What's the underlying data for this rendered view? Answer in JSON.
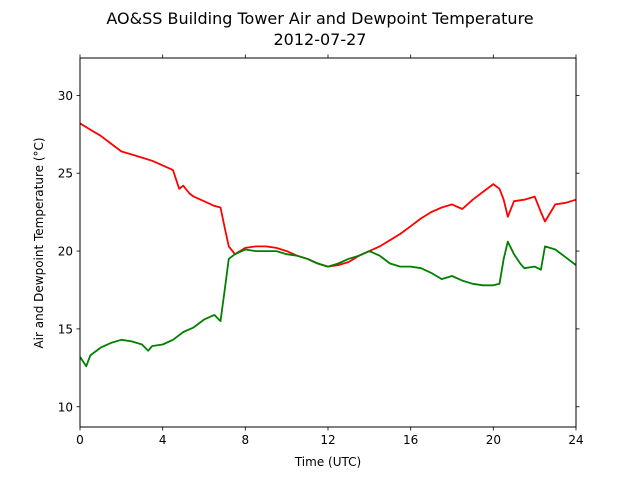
{
  "chart_data": {
    "type": "line",
    "title": "AO&SS Building Tower Air and Dewpoint Temperature",
    "subtitle": "2012-07-27",
    "xlabel": "Time (UTC)",
    "ylabel": "Air and Dewpoint Temperature (°C)",
    "xlim": [
      0,
      24
    ],
    "ylim": [
      8.7,
      32.4
    ],
    "xticks": [
      0,
      4,
      8,
      12,
      16,
      20,
      24
    ],
    "yticks": [
      10,
      15,
      20,
      25,
      30
    ],
    "grid": false,
    "legend": "none",
    "series": [
      {
        "color": "#ff0000",
        "x": [
          0,
          0.5,
          1,
          1.5,
          2,
          2.5,
          3,
          3.5,
          4,
          4.5,
          4.8,
          5,
          5.3,
          5.5,
          6,
          6.5,
          6.8,
          7.0,
          7.2,
          7.5,
          8,
          8.5,
          9,
          9.5,
          10,
          10.5,
          11,
          11.5,
          12,
          12.5,
          13,
          13.5,
          14,
          14.5,
          15,
          15.5,
          16,
          16.5,
          17,
          17.5,
          18,
          18.5,
          19,
          19.5,
          20,
          20.3,
          20.5,
          20.7,
          21,
          21.5,
          22,
          22.3,
          22.5,
          23,
          23.5,
          24
        ],
        "y": [
          28.2,
          27.8,
          27.4,
          26.9,
          26.4,
          26.2,
          26.0,
          25.8,
          25.5,
          25.2,
          24.0,
          24.2,
          23.7,
          23.5,
          23.2,
          22.9,
          22.8,
          21.5,
          20.3,
          19.8,
          20.2,
          20.3,
          20.3,
          20.2,
          20.0,
          19.7,
          19.5,
          19.2,
          19.0,
          19.1,
          19.3,
          19.7,
          20.0,
          20.3,
          20.7,
          21.1,
          21.6,
          22.1,
          22.5,
          22.8,
          23.0,
          22.7,
          23.3,
          23.8,
          24.3,
          24.0,
          23.3,
          22.2,
          23.2,
          23.3,
          23.5,
          22.5,
          21.9,
          23.0,
          23.1,
          23.3
        ]
      },
      {
        "color": "#008000",
        "x": [
          0,
          0.3,
          0.5,
          1,
          1.5,
          2,
          2.5,
          3,
          3.3,
          3.5,
          4,
          4.5,
          5,
          5.5,
          6,
          6.5,
          6.8,
          7.0,
          7.2,
          7.5,
          8,
          8.5,
          9,
          9.5,
          10,
          10.5,
          11,
          11.5,
          12,
          12.5,
          13,
          13.5,
          14,
          14.5,
          15,
          15.5,
          16,
          16.5,
          17,
          17.5,
          18,
          18.5,
          19,
          19.5,
          20,
          20.3,
          20.5,
          20.7,
          21,
          21.3,
          21.5,
          22,
          22.3,
          22.5,
          23,
          23.5,
          24
        ],
        "y": [
          13.2,
          12.6,
          13.3,
          13.8,
          14.1,
          14.3,
          14.2,
          14.0,
          13.6,
          13.9,
          14.0,
          14.3,
          14.8,
          15.1,
          15.6,
          15.9,
          15.5,
          17.5,
          19.5,
          19.8,
          20.1,
          20.0,
          20.0,
          20.0,
          19.8,
          19.7,
          19.5,
          19.2,
          19.0,
          19.2,
          19.5,
          19.7,
          20.0,
          19.7,
          19.2,
          19.0,
          19.0,
          18.9,
          18.6,
          18.2,
          18.4,
          18.1,
          17.9,
          17.8,
          17.8,
          17.9,
          19.5,
          20.6,
          19.8,
          19.2,
          18.9,
          19.0,
          18.8,
          20.3,
          20.1,
          19.6,
          19.1
        ]
      }
    ]
  }
}
